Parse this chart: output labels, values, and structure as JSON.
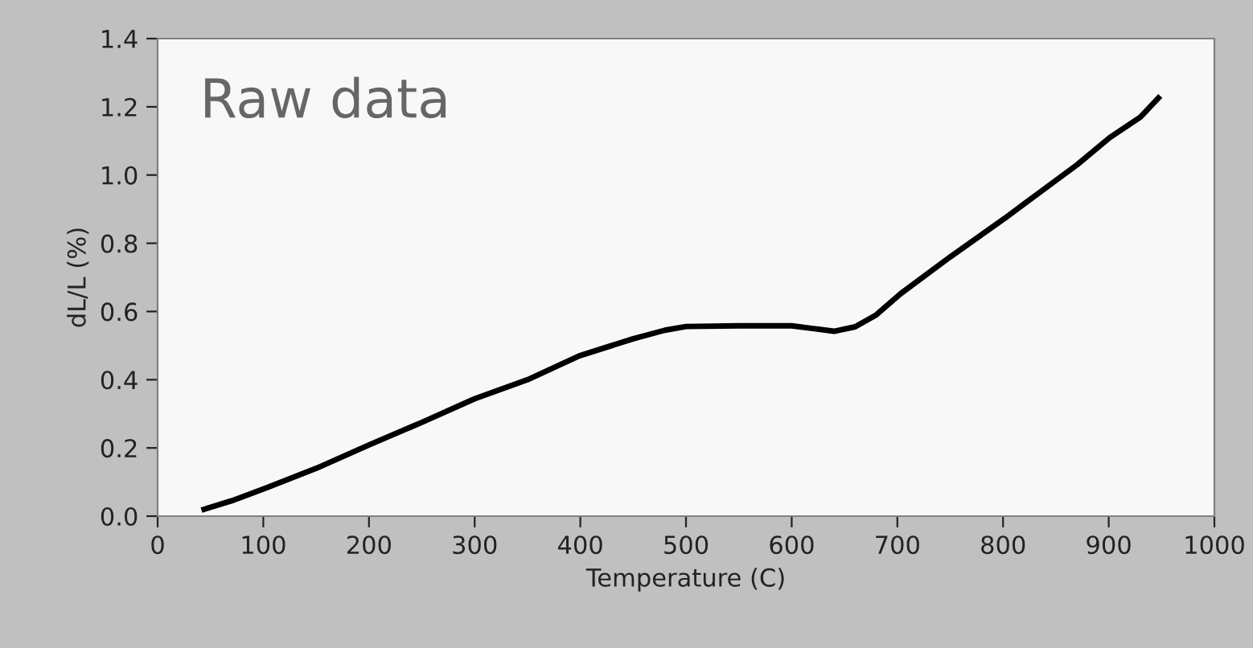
{
  "chart_data": {
    "type": "line",
    "xlabel": "Temperature (C)",
    "ylabel": "dL/L (%)",
    "annotations": [
      "Raw data"
    ],
    "x": [
      44,
      70,
      103,
      150,
      201,
      250,
      300,
      350,
      399,
      450,
      480,
      500,
      550,
      600,
      620,
      640,
      660,
      680,
      703,
      750,
      802,
      835,
      870,
      901,
      930,
      947
    ],
    "series": [
      {
        "color": "#000000",
        "values": [
          0.02,
          0.045,
          0.083,
          0.14,
          0.21,
          0.275,
          0.344,
          0.4,
          0.47,
          0.52,
          0.545,
          0.556,
          0.558,
          0.558,
          0.55,
          0.542,
          0.555,
          0.59,
          0.652,
          0.76,
          0.874,
          0.95,
          1.03,
          1.11,
          1.17,
          1.226
        ]
      }
    ],
    "xlim": [
      0,
      1000
    ],
    "xticks": [
      0,
      100,
      200,
      300,
      400,
      500,
      600,
      700,
      800,
      900,
      1000
    ],
    "ylim": [
      0,
      1.4
    ],
    "yticks": [
      {
        "value": 0,
        "label": "0.0"
      },
      0.2,
      0.4,
      0.6,
      0.8,
      {
        "value": 1,
        "label": "1.0"
      },
      1.2,
      1.4
    ],
    "grid": false,
    "marker": "none",
    "line_style": "solid"
  }
}
